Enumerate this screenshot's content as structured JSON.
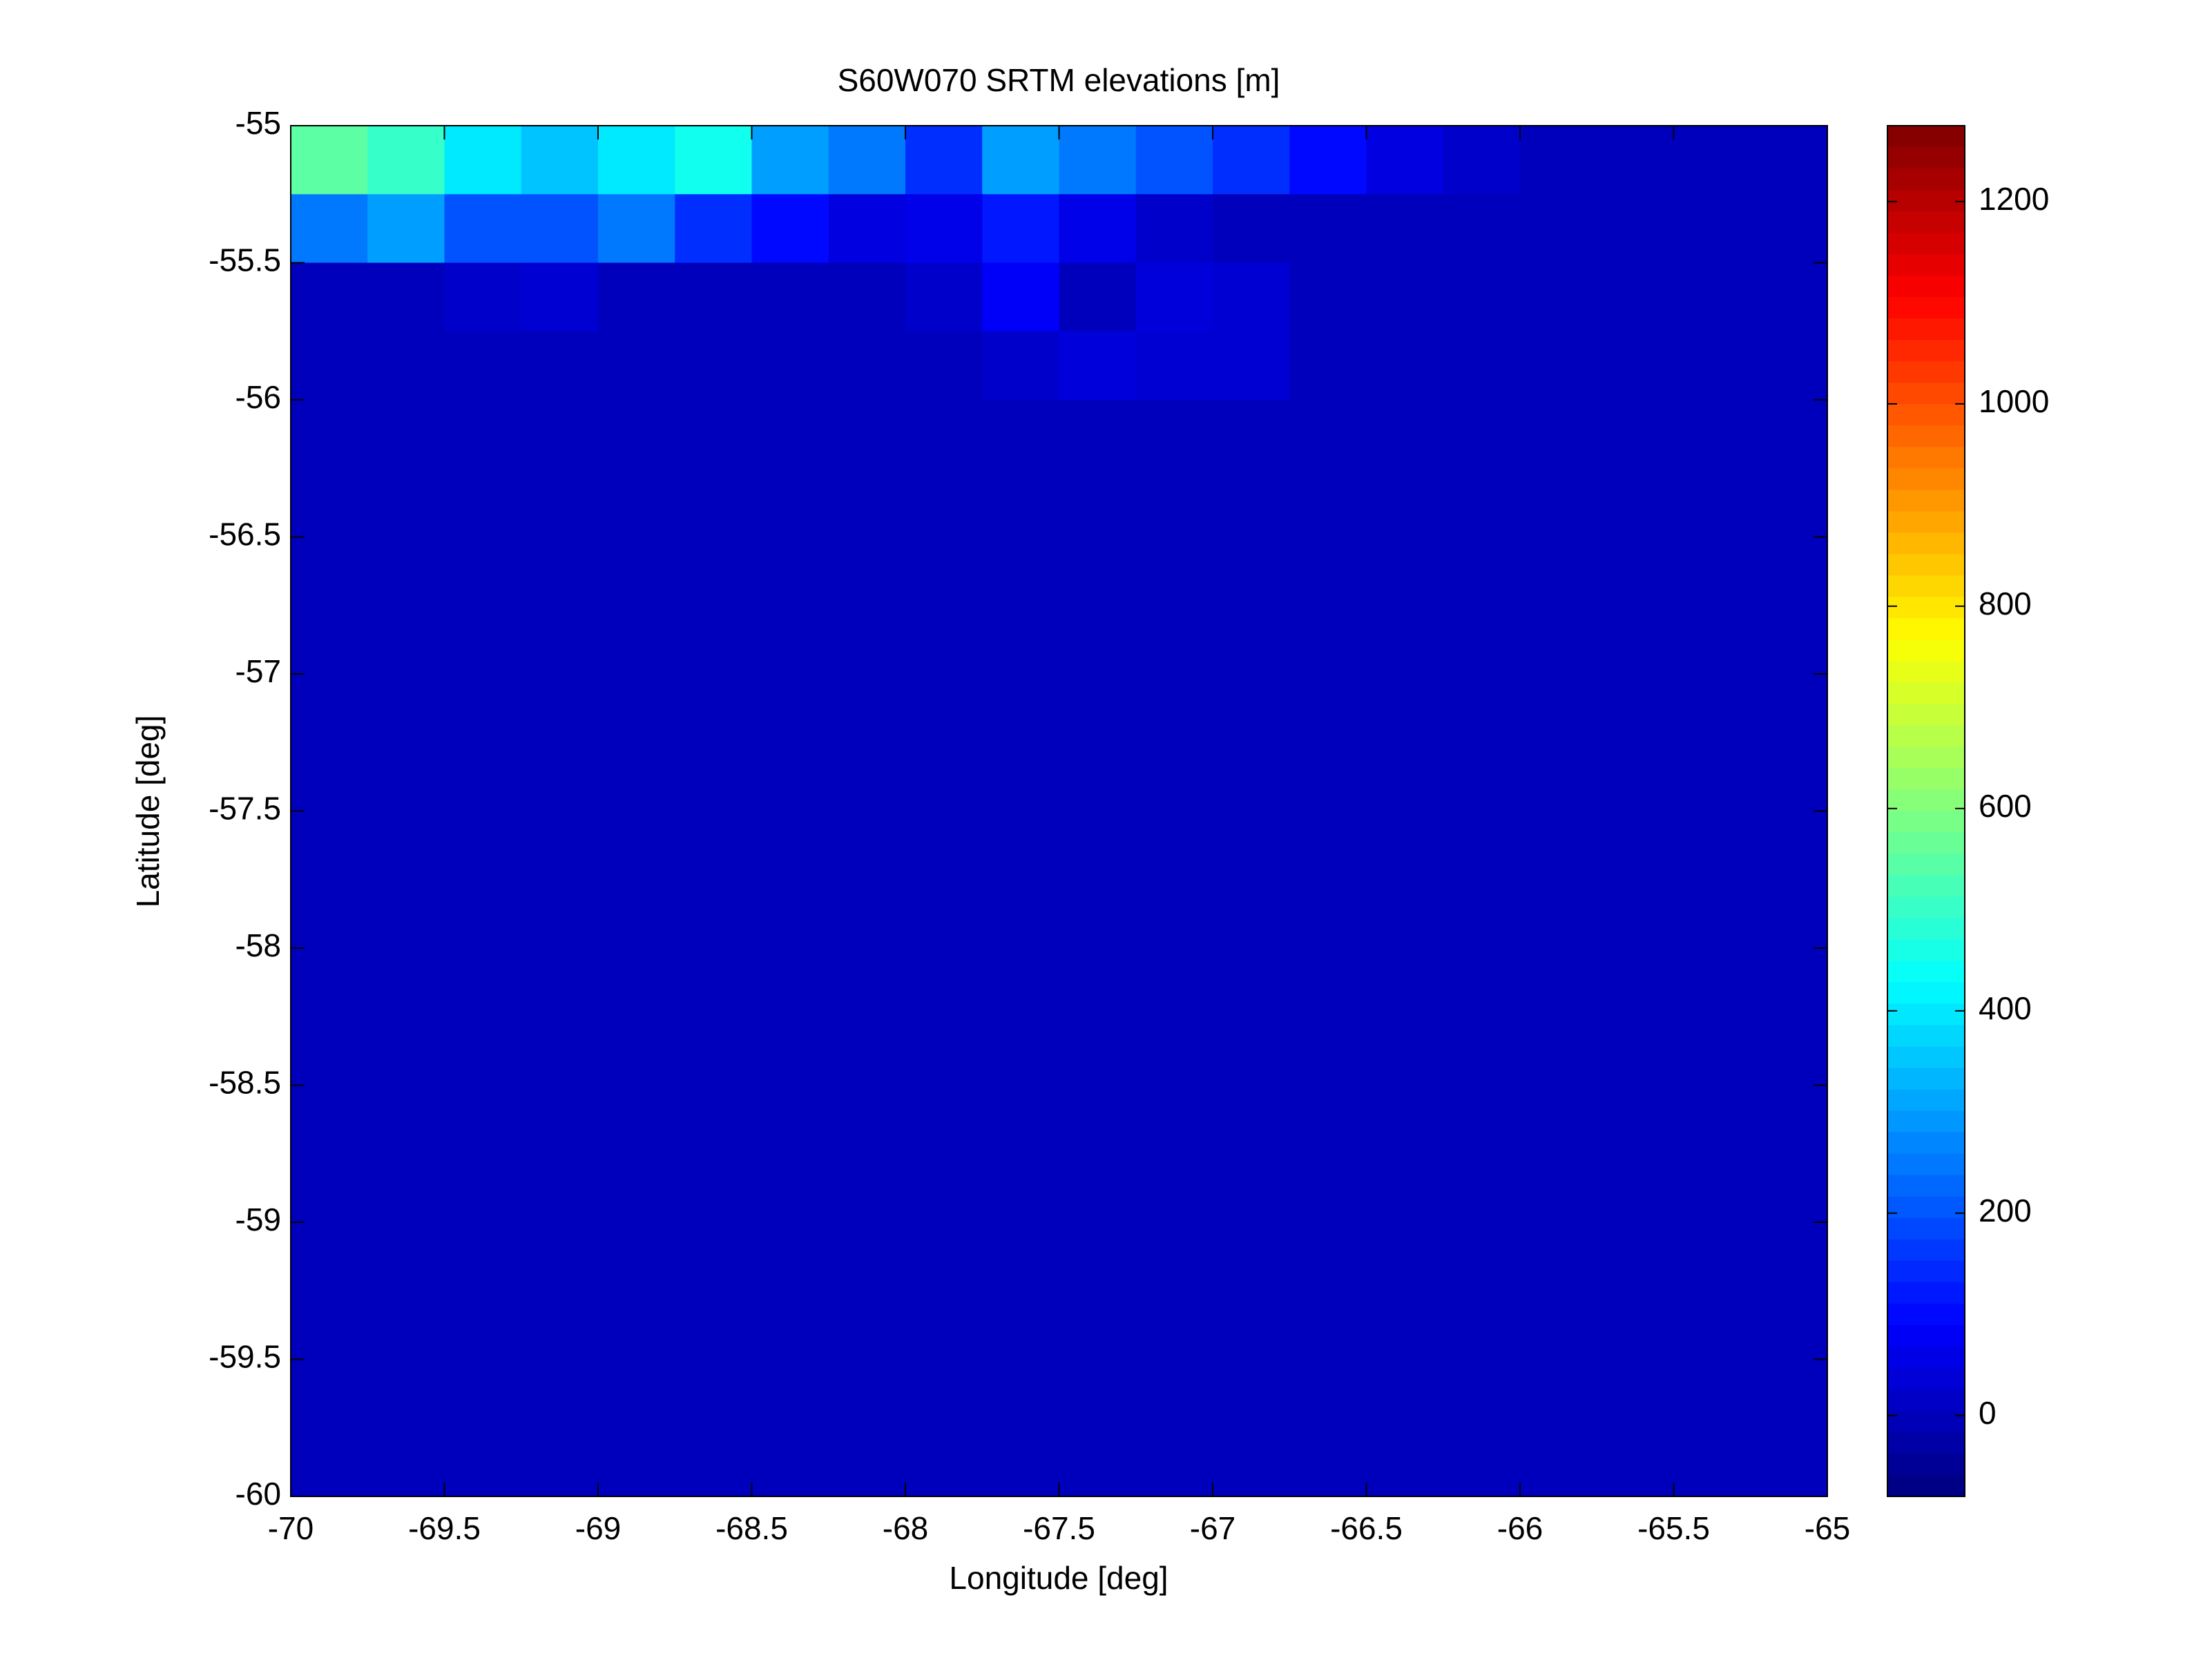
{
  "chart_data": {
    "type": "heatmap",
    "title": "S60W070 SRTM elevations [m]",
    "x_label": "Longitude [deg]",
    "y_label": "Latitude [deg]",
    "colormap": "jet",
    "xlim": [
      -70,
      -65
    ],
    "ylim": [
      -60,
      -55
    ],
    "xticks": [
      -70,
      -69.5,
      -69,
      -68.5,
      -68,
      -67.5,
      -67,
      -66.5,
      -66,
      -65.5,
      -65
    ],
    "yticks": [
      -60,
      -59.5,
      -59,
      -58.5,
      -58,
      -57.5,
      -57,
      -56.5,
      -56,
      -55.5,
      -55
    ],
    "clim": [
      -80,
      1275
    ],
    "cticks": [
      0,
      200,
      400,
      600,
      800,
      1000,
      1200
    ],
    "x_edges": [
      -70,
      -69.75,
      -69.5,
      -69.25,
      -69,
      -68.75,
      -68.5,
      -68.25,
      -68,
      -67.75,
      -67.5,
      -67.25,
      -67,
      -66.75,
      -66.5,
      -66.25,
      -66,
      -65.75,
      -65.5,
      -65.25,
      -65
    ],
    "y_edges": [
      -55,
      -55.25,
      -55.5,
      -55.75,
      -56,
      -56.25,
      -56.5,
      -56.75,
      -57,
      -57.25,
      -57.5,
      -57.75,
      -58,
      -58.25,
      -58.5,
      -58.75,
      -59,
      -59.25,
      -59.5,
      -59.75,
      -60
    ],
    "z": [
      [
        550,
        500,
        400,
        350,
        400,
        450,
        300,
        250,
        150,
        300,
        250,
        200,
        150,
        100,
        50,
        20,
        0,
        0,
        0,
        0
      ],
      [
        250,
        300,
        200,
        200,
        250,
        150,
        100,
        50,
        60,
        120,
        60,
        20,
        0,
        0,
        0,
        0,
        0,
        0,
        0,
        0
      ],
      [
        0,
        0,
        20,
        30,
        0,
        0,
        0,
        0,
        20,
        80,
        0,
        40,
        30,
        0,
        0,
        0,
        0,
        0,
        0,
        0
      ],
      [
        0,
        0,
        0,
        0,
        0,
        0,
        0,
        0,
        0,
        20,
        40,
        30,
        30,
        0,
        0,
        0,
        0,
        0,
        0,
        0
      ],
      [
        0,
        0,
        0,
        0,
        0,
        0,
        0,
        0,
        0,
        0,
        0,
        0,
        0,
        0,
        0,
        0,
        0,
        0,
        0,
        0
      ],
      [
        0,
        0,
        0,
        0,
        0,
        0,
        0,
        0,
        0,
        0,
        0,
        0,
        0,
        0,
        0,
        0,
        0,
        0,
        0,
        0
      ],
      [
        0,
        0,
        0,
        0,
        0,
        0,
        0,
        0,
        0,
        0,
        0,
        0,
        0,
        0,
        0,
        0,
        0,
        0,
        0,
        0
      ],
      [
        0,
        0,
        0,
        0,
        0,
        0,
        0,
        0,
        0,
        0,
        0,
        0,
        0,
        0,
        0,
        0,
        0,
        0,
        0,
        0
      ],
      [
        0,
        0,
        0,
        0,
        0,
        0,
        0,
        0,
        0,
        0,
        0,
        0,
        0,
        0,
        0,
        0,
        0,
        0,
        0,
        0
      ],
      [
        0,
        0,
        0,
        0,
        0,
        0,
        0,
        0,
        0,
        0,
        0,
        0,
        0,
        0,
        0,
        0,
        0,
        0,
        0,
        0
      ],
      [
        0,
        0,
        0,
        0,
        0,
        0,
        0,
        0,
        0,
        0,
        0,
        0,
        0,
        0,
        0,
        0,
        0,
        0,
        0,
        0
      ],
      [
        0,
        0,
        0,
        0,
        0,
        0,
        0,
        0,
        0,
        0,
        0,
        0,
        0,
        0,
        0,
        0,
        0,
        0,
        0,
        0
      ],
      [
        0,
        0,
        0,
        0,
        0,
        0,
        0,
        0,
        0,
        0,
        0,
        0,
        0,
        0,
        0,
        0,
        0,
        0,
        0,
        0
      ],
      [
        0,
        0,
        0,
        0,
        0,
        0,
        0,
        0,
        0,
        0,
        0,
        0,
        0,
        0,
        0,
        0,
        0,
        0,
        0,
        0
      ],
      [
        0,
        0,
        0,
        0,
        0,
        0,
        0,
        0,
        0,
        0,
        0,
        0,
        0,
        0,
        0,
        0,
        0,
        0,
        0,
        0
      ],
      [
        0,
        0,
        0,
        0,
        0,
        0,
        0,
        0,
        0,
        0,
        0,
        0,
        0,
        0,
        0,
        0,
        0,
        0,
        0,
        0
      ],
      [
        0,
        0,
        0,
        0,
        0,
        0,
        0,
        0,
        0,
        0,
        0,
        0,
        0,
        0,
        0,
        0,
        0,
        0,
        0,
        0
      ],
      [
        0,
        0,
        0,
        0,
        0,
        0,
        0,
        0,
        0,
        0,
        0,
        0,
        0,
        0,
        0,
        0,
        0,
        0,
        0,
        0
      ],
      [
        0,
        0,
        0,
        0,
        0,
        0,
        0,
        0,
        0,
        0,
        0,
        0,
        0,
        0,
        0,
        0,
        0,
        0,
        0,
        0
      ],
      [
        0,
        0,
        0,
        0,
        0,
        0,
        0,
        0,
        0,
        0,
        0,
        0,
        0,
        0,
        0,
        0,
        0,
        0,
        0,
        0
      ]
    ]
  }
}
